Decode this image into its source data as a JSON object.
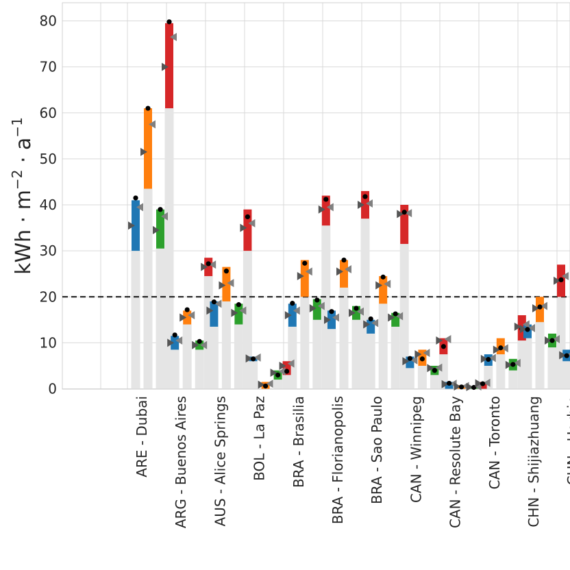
{
  "chart_data": {
    "type": "bar",
    "title": "",
    "ylabel_parts": {
      "base": "kWh · m",
      "exp1": "−2",
      "mid": " · a",
      "exp2": "−1"
    },
    "ylim": [
      0,
      84
    ],
    "yticks": [
      0,
      10,
      20,
      30,
      40,
      50,
      60,
      70,
      80
    ],
    "threshold": 20,
    "grid": true,
    "categories": [
      "ARE - Dubai",
      "ARG - Buenos Aires",
      "AUS - Alice Springs",
      "BOL - La Paz",
      "BRA - Brasilia",
      "BRA - Florianopolis",
      "BRA - Sao Paulo",
      "CAN - Winnipeg",
      "CAN - Resolute Bay",
      "CAN - Toronto",
      "CHN - Shijiazhuang",
      "CHN - Harbin"
    ],
    "series_colors": [
      "#1f77b4",
      "#ff7f0e",
      "#2ca02c",
      "#d62728"
    ],
    "groups": [
      {
        "cat": "ARE - Dubai",
        "series": [
          {
            "base": 30,
            "low": 30,
            "high": 41,
            "dot": 41.5,
            "tri_left": 35.5,
            "tri_right": 39.5
          },
          {
            "base": 43.5,
            "low": 43.5,
            "high": 61,
            "dot": 61,
            "tri_left": 51.5,
            "tri_right": 57.5
          },
          {
            "base": 30.5,
            "low": 30.5,
            "high": 39,
            "dot": 39,
            "tri_left": 34.5,
            "tri_right": 37.5
          },
          {
            "base": 61,
            "low": 61,
            "high": 79.5,
            "dot": 79.8,
            "tri_left": 70,
            "tri_right": 76.5
          }
        ]
      },
      {
        "cat": "ARG - Buenos Aires",
        "series": [
          {
            "base": 8.5,
            "low": 8.5,
            "high": 11.5,
            "dot": 11.7,
            "tri_left": 10,
            "tri_right": 10.5
          },
          {
            "base": 14,
            "low": 14,
            "high": 17,
            "dot": 17.2,
            "tri_left": 15.5,
            "tri_right": 16
          },
          {
            "base": 8.5,
            "low": 8.5,
            "high": 10.5,
            "dot": 10.3,
            "tri_left": 9.5,
            "tri_right": 9.5
          },
          {
            "base": 24.5,
            "low": 24.5,
            "high": 28.5,
            "dot": 27.2,
            "tri_left": 26.5,
            "tri_right": 27
          }
        ]
      },
      {
        "cat": "AUS - Alice Springs",
        "series": [
          {
            "base": 13.5,
            "low": 13.5,
            "high": 19,
            "dot": 18.9,
            "tri_left": 17,
            "tri_right": 18.5
          },
          {
            "base": 19,
            "low": 19,
            "high": 26.5,
            "dot": 25.6,
            "tri_left": 22.5,
            "tri_right": 23
          },
          {
            "base": 14,
            "low": 14,
            "high": 18.5,
            "dot": 18.3,
            "tri_left": 16.5,
            "tri_right": 17
          },
          {
            "base": 30,
            "low": 30,
            "high": 39,
            "dot": 37.4,
            "tri_left": 35,
            "tri_right": 36
          }
        ]
      },
      {
        "cat": "BOL - La Paz",
        "series": [
          {
            "base": 6,
            "low": 6,
            "high": 7,
            "dot": 6.5,
            "tri_left": 6.6,
            "tri_right": 6.8
          },
          {
            "base": 0,
            "low": 0,
            "high": 1.5,
            "dot": 0.6,
            "tri_left": 0.9,
            "tri_right": 1.1
          },
          {
            "base": 2,
            "low": 2,
            "high": 4,
            "dot": 3,
            "tri_left": 3.5,
            "tri_right": 3.8
          },
          {
            "base": 3,
            "low": 3,
            "high": 6,
            "dot": 3.8,
            "tri_left": 5,
            "tri_right": 5.5
          }
        ]
      },
      {
        "cat": "BRA - Brasilia",
        "series": [
          {
            "base": 13.5,
            "low": 13.5,
            "high": 18.5,
            "dot": 18.6,
            "tri_left": 16,
            "tri_right": 17
          },
          {
            "base": 20,
            "low": 20,
            "high": 28,
            "dot": 27.3,
            "tri_left": 24.5,
            "tri_right": 25.5
          },
          {
            "base": 15,
            "low": 15,
            "high": 19.5,
            "dot": 19.3,
            "tri_left": 17.5,
            "tri_right": 18
          },
          {
            "base": 35.5,
            "low": 35.5,
            "high": 42,
            "dot": 41.2,
            "tri_left": 39,
            "tri_right": 39.5
          }
        ]
      },
      {
        "cat": "BRA - Florianopolis",
        "series": [
          {
            "base": 13,
            "low": 13,
            "high": 17,
            "dot": 16.8,
            "tri_left": 15,
            "tri_right": 15.5
          },
          {
            "base": 22,
            "low": 22,
            "high": 28,
            "dot": 28,
            "tri_left": 25.5,
            "tri_right": 26
          },
          {
            "base": 15,
            "low": 15,
            "high": 18,
            "dot": 17.5,
            "tri_left": 16.5,
            "tri_right": 16.8
          },
          {
            "base": 37,
            "low": 37,
            "high": 43,
            "dot": 41.8,
            "tri_left": 40,
            "tri_right": 40.3
          }
        ]
      },
      {
        "cat": "BRA - Sao Paulo",
        "series": [
          {
            "base": 12,
            "low": 12,
            "high": 15,
            "dot": 15.2,
            "tri_left": 14,
            "tri_right": 14.3
          },
          {
            "base": 18.5,
            "low": 18.5,
            "high": 24.5,
            "dot": 24.3,
            "tri_left": 22.5,
            "tri_right": 22.8
          },
          {
            "base": 13.5,
            "low": 13.5,
            "high": 16.5,
            "dot": 16.3,
            "tri_left": 15.5,
            "tri_right": 15.8
          },
          {
            "base": 31.5,
            "low": 31.5,
            "high": 40,
            "dot": 38.4,
            "tri_left": 38,
            "tri_right": 38.2
          }
        ]
      },
      {
        "cat": "CAN - Winnipeg",
        "series": [
          {
            "base": 4.5,
            "low": 4.5,
            "high": 7,
            "dot": 6.6,
            "tri_left": 6,
            "tri_right": 6.2
          },
          {
            "base": 5,
            "low": 5,
            "high": 8.5,
            "dot": 6.5,
            "tri_left": 7.5,
            "tri_right": 7.8
          },
          {
            "base": 3,
            "low": 3,
            "high": 5,
            "dot": 4,
            "tri_left": 4.5,
            "tri_right": 4.6
          },
          {
            "base": 7.5,
            "low": 7.5,
            "high": 11,
            "dot": 9.2,
            "tri_left": 10.5,
            "tri_right": 10.8
          }
        ]
      },
      {
        "cat": "CAN - Resolute Bay",
        "series": [
          {
            "base": 0,
            "low": 0,
            "high": 1.5,
            "dot": 1.2,
            "tri_left": 1,
            "tri_right": 1.1
          },
          {
            "base": 0,
            "low": 0,
            "high": 0.8,
            "dot": 0.4,
            "tri_left": 0.5,
            "tri_right": 0.6
          },
          {
            "base": 0,
            "low": 0,
            "high": 0.6,
            "dot": 0.3,
            "tri_left": 0.4,
            "tri_right": 0.5
          },
          {
            "base": 0,
            "low": 0,
            "high": 1.5,
            "dot": 1.1,
            "tri_left": 1.2,
            "tri_right": 1.3
          }
        ]
      },
      {
        "cat": "CAN - Toronto",
        "series": [
          {
            "base": 5,
            "low": 5,
            "high": 7.5,
            "dot": 6.4,
            "tri_left": 6.5,
            "tri_right": 6.7
          },
          {
            "base": 7.5,
            "low": 7.5,
            "high": 11,
            "dot": 8.9,
            "tri_left": 8.5,
            "tri_right": 8.8
          },
          {
            "base": 4,
            "low": 4,
            "high": 6.5,
            "dot": 5.3,
            "tri_left": 5.2,
            "tri_right": 5.6
          },
          {
            "base": 10.5,
            "low": 10.5,
            "high": 16,
            "dot": 13,
            "tri_left": 13.5,
            "tri_right": 14
          }
        ]
      },
      {
        "cat": "CHN - Shijiazhuang",
        "series": [
          {
            "base": 11,
            "low": 11,
            "high": 14,
            "dot": 12.9,
            "tri_left": 13,
            "tri_right": 13.2
          },
          {
            "base": 14.5,
            "low": 14.5,
            "high": 20,
            "dot": 17.8,
            "tri_left": 17.5,
            "tri_right": 18
          },
          {
            "base": 9,
            "low": 9,
            "high": 12,
            "dot": 10.5,
            "tri_left": 10.5,
            "tri_right": 10.8
          },
          {
            "base": 20,
            "low": 20,
            "high": 27,
            "dot": 23.7,
            "tri_left": 23.5,
            "tri_right": 24.5
          }
        ]
      },
      {
        "cat": "CHN - Harbin",
        "series": [
          {
            "base": 6,
            "low": 6,
            "high": 8.5,
            "dot": 7.2,
            "tri_left": 7.3,
            "tri_right": 7.5
          }
        ]
      }
    ]
  }
}
